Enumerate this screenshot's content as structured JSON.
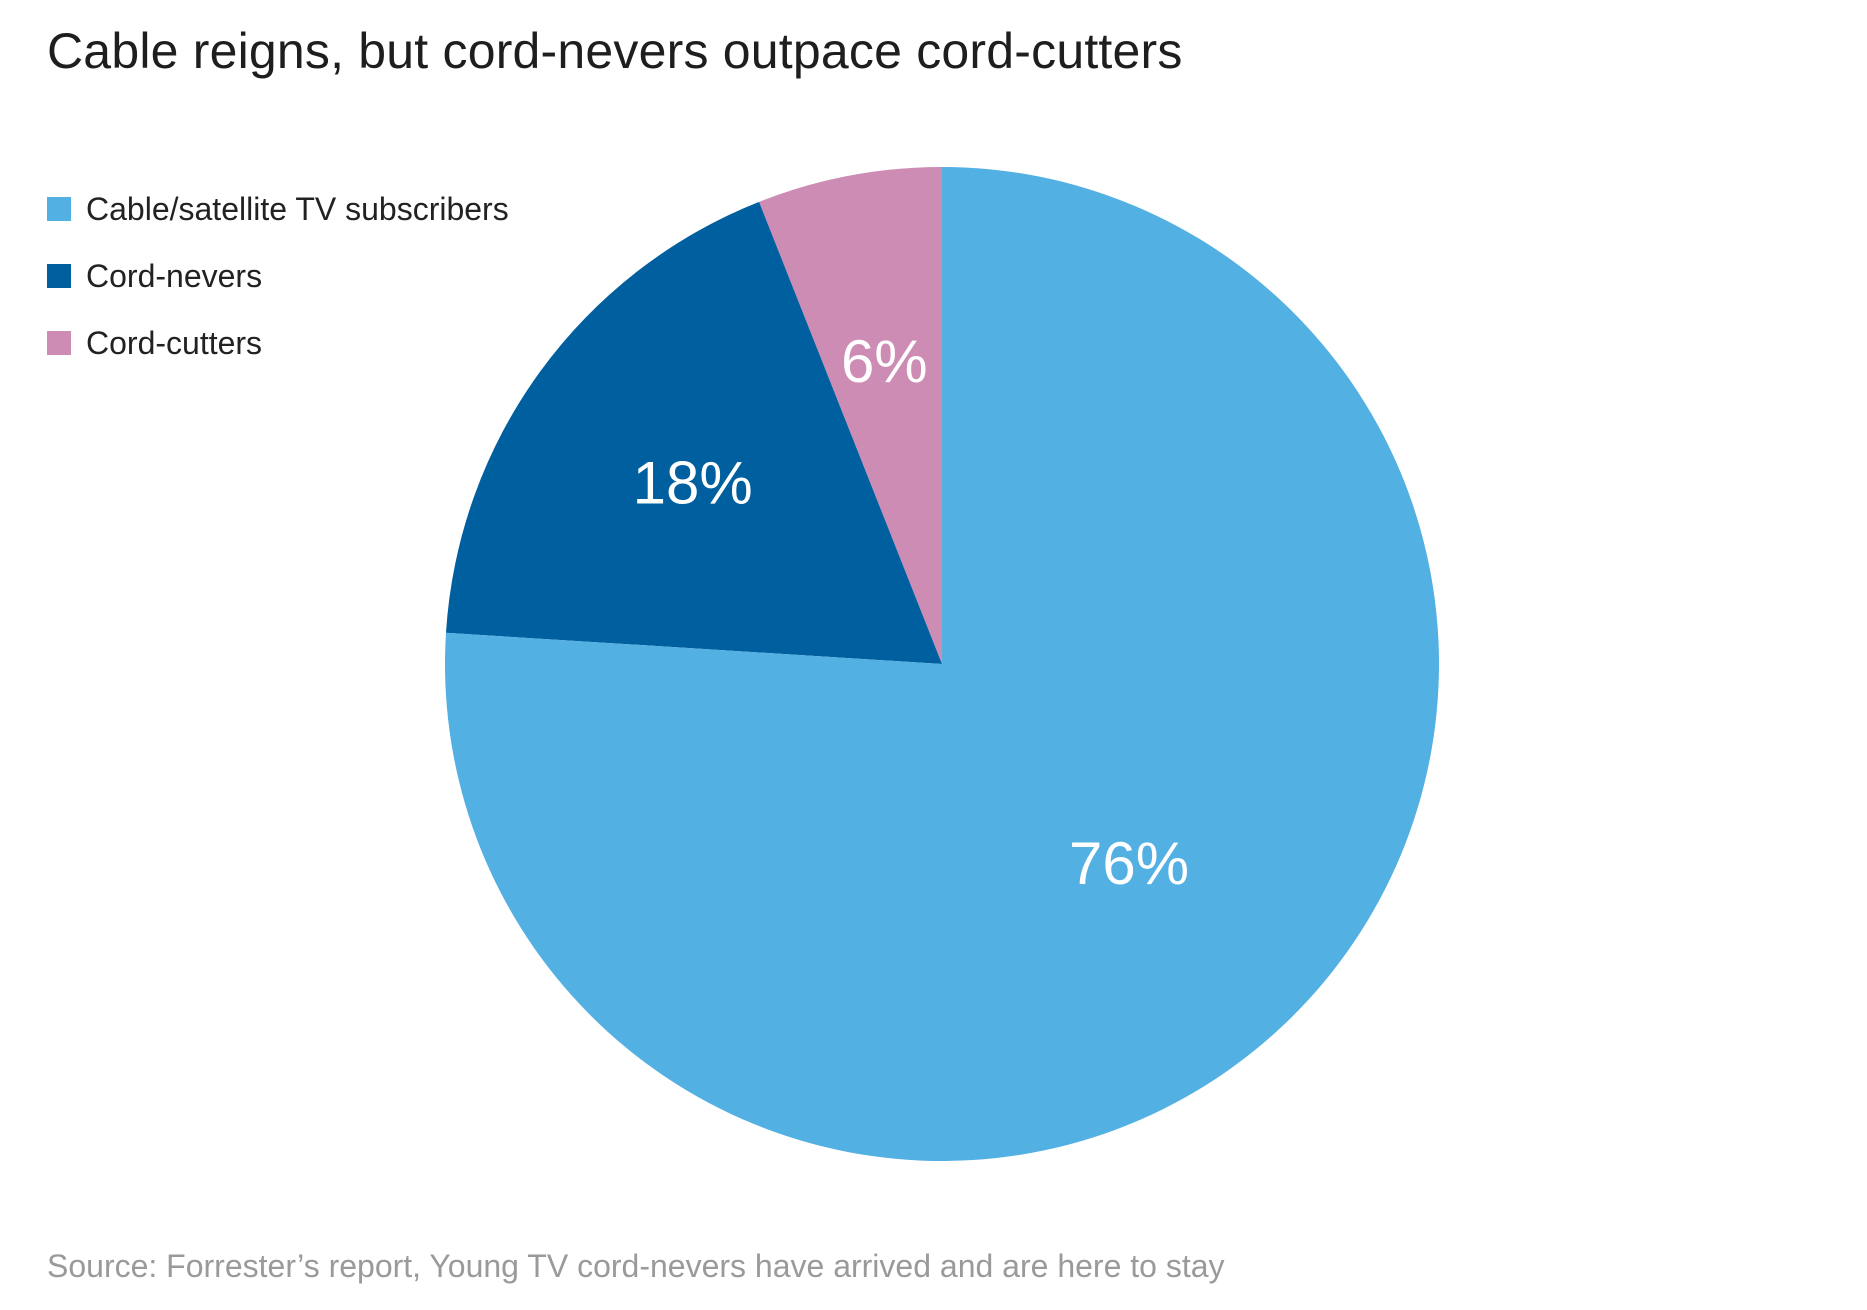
{
  "title": "Cable reigns, but cord-nevers outpace cord-cutters",
  "source": "Source: Forrester’s report, Young TV cord-nevers have arrived and are here to stay",
  "colors": {
    "cable": "#53b0e2",
    "nevers": "#005f9e",
    "cutters": "#cd8cb4"
  },
  "chart_data": {
    "type": "pie",
    "title": "Cable reigns, but cord-nevers outpace cord-cutters",
    "legend_position": "top-left",
    "slices": [
      {
        "name": "Cord-cutters",
        "value": 6,
        "label": "6%",
        "color": "#cd8cb4"
      },
      {
        "name": "Cord-nevers",
        "value": 18,
        "label": "18%",
        "color": "#005f9e"
      },
      {
        "name": "Cable/satellite TV subscribers",
        "value": 76,
        "label": "76%",
        "color": "#53b0e2"
      }
    ],
    "legend": [
      {
        "name": "Cable/satellite TV subscribers",
        "color": "#53b0e2"
      },
      {
        "name": "Cord-nevers",
        "color": "#005f9e"
      },
      {
        "name": "Cord-cutters",
        "color": "#cd8cb4"
      }
    ]
  }
}
